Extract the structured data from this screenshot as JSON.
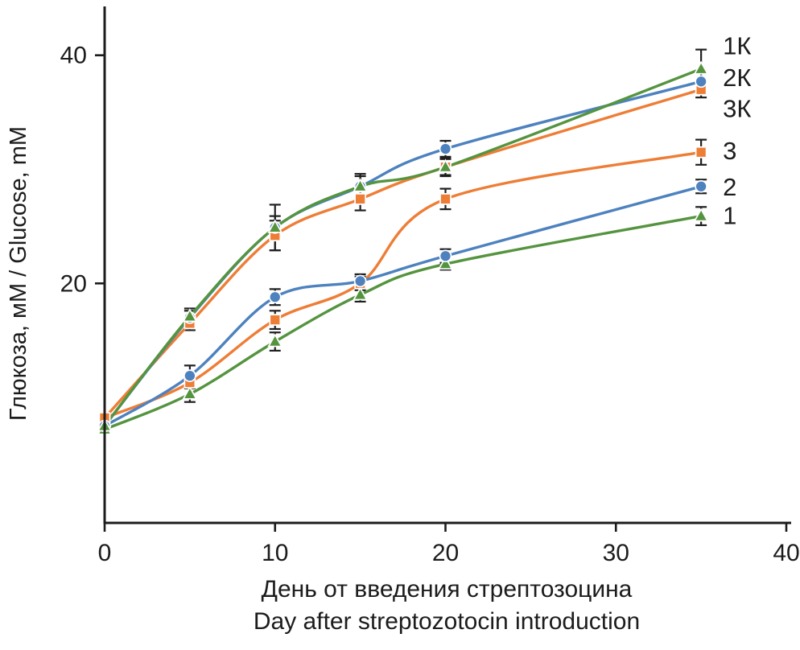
{
  "chart_data": {
    "type": "line",
    "title": "",
    "xlabel_ru": "День от введения стрептозоцина",
    "xlabel_en": "Day after streptozotocin introduction",
    "ylabel": "Глюкоза, мМ / Glucose, mM",
    "x": [
      0,
      5,
      10,
      15,
      20,
      35
    ],
    "xlim": [
      0,
      40
    ],
    "ylim": [
      -1,
      44
    ],
    "xticks": [
      0,
      10,
      20,
      30,
      40
    ],
    "yticks": [
      20,
      40
    ],
    "grid": false,
    "legend_position": "right-of-last-point",
    "error_bar_color": "#1f1f1f",
    "axis_color": "#1c1c1c",
    "series": [
      {
        "name": "1К",
        "marker": "triangle",
        "color": "#55943f",
        "values": [
          7.5,
          17.1,
          24.9,
          28.5,
          30.2,
          38.8
        ],
        "errors": [
          0.4,
          0.7,
          2.0,
          1.1,
          0.7,
          1.7
        ],
        "label_value": 40.8
      },
      {
        "name": "2К",
        "marker": "circle",
        "color": "#4d82bf",
        "values": [
          7.5,
          17.0,
          24.9,
          28.5,
          31.8,
          37.7
        ],
        "errors": [
          0.4,
          0.6,
          1.0,
          0.9,
          0.7,
          0.8
        ],
        "label_value": 38.0
      },
      {
        "name": "3К",
        "marker": "square",
        "color": "#ee7d36",
        "values": [
          8.2,
          16.5,
          24.2,
          27.4,
          30.2,
          37.0
        ],
        "errors": [
          0.4,
          0.6,
          1.3,
          1.0,
          0.8,
          0.7
        ],
        "label_value": 35.3
      },
      {
        "name": "3",
        "marker": "square",
        "color": "#ee7d36",
        "values": [
          8.2,
          11.3,
          16.8,
          20.0,
          27.4,
          31.5
        ],
        "errors": [
          0.4,
          0.5,
          0.8,
          0.6,
          0.9,
          1.1
        ],
        "label_value": 31.6
      },
      {
        "name": "2",
        "marker": "circle",
        "color": "#4d82bf",
        "values": [
          7.5,
          11.9,
          18.8,
          20.2,
          22.4,
          28.5
        ],
        "errors": [
          0.4,
          0.9,
          0.7,
          0.6,
          0.6,
          0.6
        ],
        "label_value": 28.4
      },
      {
        "name": "1",
        "marker": "triangle",
        "color": "#55943f",
        "values": [
          7.2,
          10.3,
          14.9,
          19.0,
          21.7,
          25.9
        ],
        "errors": [
          0.4,
          0.7,
          0.8,
          0.6,
          0.5,
          0.8
        ],
        "label_value": 25.9
      }
    ]
  }
}
